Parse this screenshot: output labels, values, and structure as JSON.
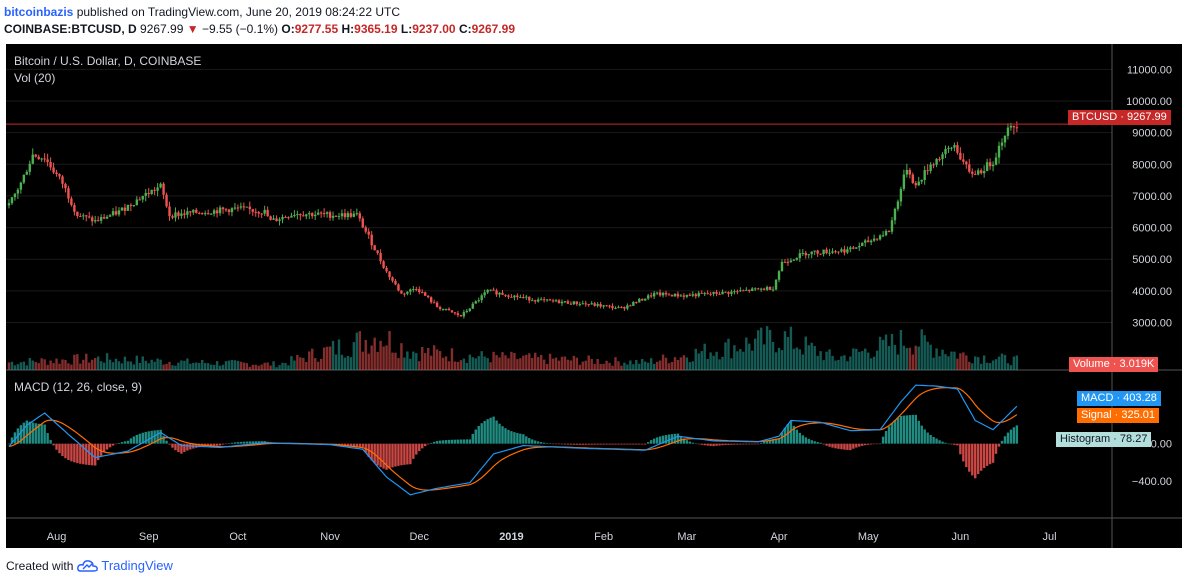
{
  "header": {
    "user": "bitcoinbazis",
    "published_text": "published on TradingView.com, June 20, 2019 08:24:22 UTC"
  },
  "ohlc": {
    "symbol": "COINBASE:BTCUSD, D",
    "last": "9267.99",
    "change": "−9.55 (−0.1%)",
    "o_label": "O:",
    "o": "9277.55",
    "h_label": "H:",
    "h": "9365.19",
    "l_label": "L:",
    "l": "9237.00",
    "c_label": "C:",
    "c": "9267.99"
  },
  "chart_title": "Bitcoin / U.S. Dollar, D, COINBASE",
  "vol_label": "Vol (20)",
  "macd_label": "MACD (12, 26, close, 9)",
  "tags": {
    "btcusd_label": "BTCUSD",
    "btcusd_value": "9267.99",
    "volume_label": "Volume",
    "volume_value": "3.019K",
    "macd_label": "MACD",
    "macd_value": "403.28",
    "signal_label": "Signal",
    "signal_value": "325.01",
    "hist_label": "Histogram",
    "hist_value": "78.27"
  },
  "footer": {
    "created_with": "Created with",
    "brand": "TradingView"
  },
  "colors": {
    "up": "#4caf50",
    "down": "#ef5350",
    "vol_up": "#26a69a",
    "vol_down": "#ef5350",
    "macd": "#2196f3",
    "signal": "#ff6d00",
    "hist_pos": "#26a69a",
    "hist_neg": "#ef5350",
    "price_line": "#c62828"
  },
  "chart_data": {
    "type": "candlestick",
    "price_axis": {
      "ticks": [
        3000,
        4000,
        5000,
        6000,
        7000,
        8000,
        9000,
        10000,
        11000
      ],
      "tick_labels": [
        "3000.00",
        "4000.00",
        "5000.00",
        "6000.00",
        "7000.00",
        "8000.00",
        "9000.00",
        "10000.00",
        "11000.00"
      ],
      "range": [
        1500,
        11800
      ]
    },
    "macd_axis": {
      "ticks": [
        0,
        -400
      ],
      "tick_labels": [
        "0.00",
        "−400.00"
      ],
      "range": [
        -800,
        750
      ]
    },
    "time_axis": {
      "labels": [
        "Aug",
        "Sep",
        "Oct",
        "Nov",
        "Dec",
        "2019",
        "Feb",
        "Mar",
        "Apr",
        "May",
        "Jun",
        "Jul"
      ],
      "bold": [
        "2019"
      ]
    },
    "price_anchors": [
      [
        "2018-07-16",
        6700
      ],
      [
        "2018-07-20",
        7400
      ],
      [
        "2018-07-24",
        8300
      ],
      [
        "2018-07-28",
        8200
      ],
      [
        "2018-08-03",
        7400
      ],
      [
        "2018-08-08",
        6400
      ],
      [
        "2018-08-14",
        6200
      ],
      [
        "2018-08-22",
        6500
      ],
      [
        "2018-08-30",
        7000
      ],
      [
        "2018-09-05",
        7300
      ],
      [
        "2018-09-08",
        6400
      ],
      [
        "2018-09-20",
        6500
      ],
      [
        "2018-10-01",
        6600
      ],
      [
        "2018-10-10",
        6500
      ],
      [
        "2018-10-12",
        6200
      ],
      [
        "2018-10-20",
        6450
      ],
      [
        "2018-11-01",
        6400
      ],
      [
        "2018-11-10",
        6400
      ],
      [
        "2018-11-14",
        5700
      ],
      [
        "2018-11-20",
        4600
      ],
      [
        "2018-11-25",
        3900
      ],
      [
        "2018-11-30",
        4100
      ],
      [
        "2018-12-07",
        3500
      ],
      [
        "2018-12-15",
        3200
      ],
      [
        "2018-12-24",
        4000
      ],
      [
        "2019-01-01",
        3850
      ],
      [
        "2019-01-10",
        3700
      ],
      [
        "2019-01-25",
        3600
      ],
      [
        "2019-02-07",
        3450
      ],
      [
        "2019-02-18",
        3900
      ],
      [
        "2019-02-28",
        3850
      ],
      [
        "2019-03-15",
        3950
      ],
      [
        "2019-03-30",
        4100
      ],
      [
        "2019-04-02",
        4900
      ],
      [
        "2019-04-10",
        5200
      ],
      [
        "2019-04-25",
        5300
      ],
      [
        "2019-05-02",
        5600
      ],
      [
        "2019-05-08",
        5900
      ],
      [
        "2019-05-14",
        7900
      ],
      [
        "2019-05-17",
        7300
      ],
      [
        "2019-05-22",
        8000
      ],
      [
        "2019-05-30",
        8600
      ],
      [
        "2019-06-04",
        7700
      ],
      [
        "2019-06-08",
        7800
      ],
      [
        "2019-06-12",
        8100
      ],
      [
        "2019-06-16",
        9000
      ],
      [
        "2019-06-20",
        9268
      ]
    ],
    "macd_anchors": [
      [
        "2018-07-16",
        -30
      ],
      [
        "2018-07-22",
        200
      ],
      [
        "2018-07-28",
        330
      ],
      [
        "2018-08-05",
        100
      ],
      [
        "2018-08-14",
        -150
      ],
      [
        "2018-08-25",
        -80
      ],
      [
        "2018-09-05",
        120
      ],
      [
        "2018-09-12",
        -20
      ],
      [
        "2018-09-25",
        -40
      ],
      [
        "2018-10-10",
        10
      ],
      [
        "2018-11-01",
        -10
      ],
      [
        "2018-11-12",
        -60
      ],
      [
        "2018-11-20",
        -360
      ],
      [
        "2018-11-28",
        -550
      ],
      [
        "2018-12-07",
        -480
      ],
      [
        "2018-12-18",
        -420
      ],
      [
        "2018-12-26",
        -110
      ],
      [
        "2019-01-05",
        -20
      ],
      [
        "2019-01-25",
        -50
      ],
      [
        "2019-02-15",
        -70
      ],
      [
        "2019-02-26",
        80
      ],
      [
        "2019-03-10",
        30
      ],
      [
        "2019-03-25",
        20
      ],
      [
        "2019-04-01",
        80
      ],
      [
        "2019-04-05",
        250
      ],
      [
        "2019-04-15",
        230
      ],
      [
        "2019-04-25",
        140
      ],
      [
        "2019-05-05",
        150
      ],
      [
        "2019-05-12",
        450
      ],
      [
        "2019-05-17",
        630
      ],
      [
        "2019-05-24",
        620
      ],
      [
        "2019-05-31",
        590
      ],
      [
        "2019-06-06",
        250
      ],
      [
        "2019-06-12",
        150
      ],
      [
        "2019-06-20",
        403
      ]
    ],
    "volume_anchors": [
      [
        "2018-07-16",
        0.2
      ],
      [
        "2018-08-15",
        0.3
      ],
      [
        "2018-09-15",
        0.2
      ],
      [
        "2018-10-15",
        0.15
      ],
      [
        "2018-11-18",
        0.9
      ],
      [
        "2018-11-28",
        0.5
      ],
      [
        "2018-12-20",
        0.35
      ],
      [
        "2019-02-15",
        0.2
      ],
      [
        "2019-04-02",
        0.85
      ],
      [
        "2019-04-20",
        0.3
      ],
      [
        "2019-05-15",
        0.8
      ],
      [
        "2019-06-01",
        0.4
      ],
      [
        "2019-06-20",
        0.25
      ]
    ],
    "last_price": 9267.99,
    "last_macd": 403.28,
    "last_signal": 325.01,
    "last_histogram": 78.27
  }
}
